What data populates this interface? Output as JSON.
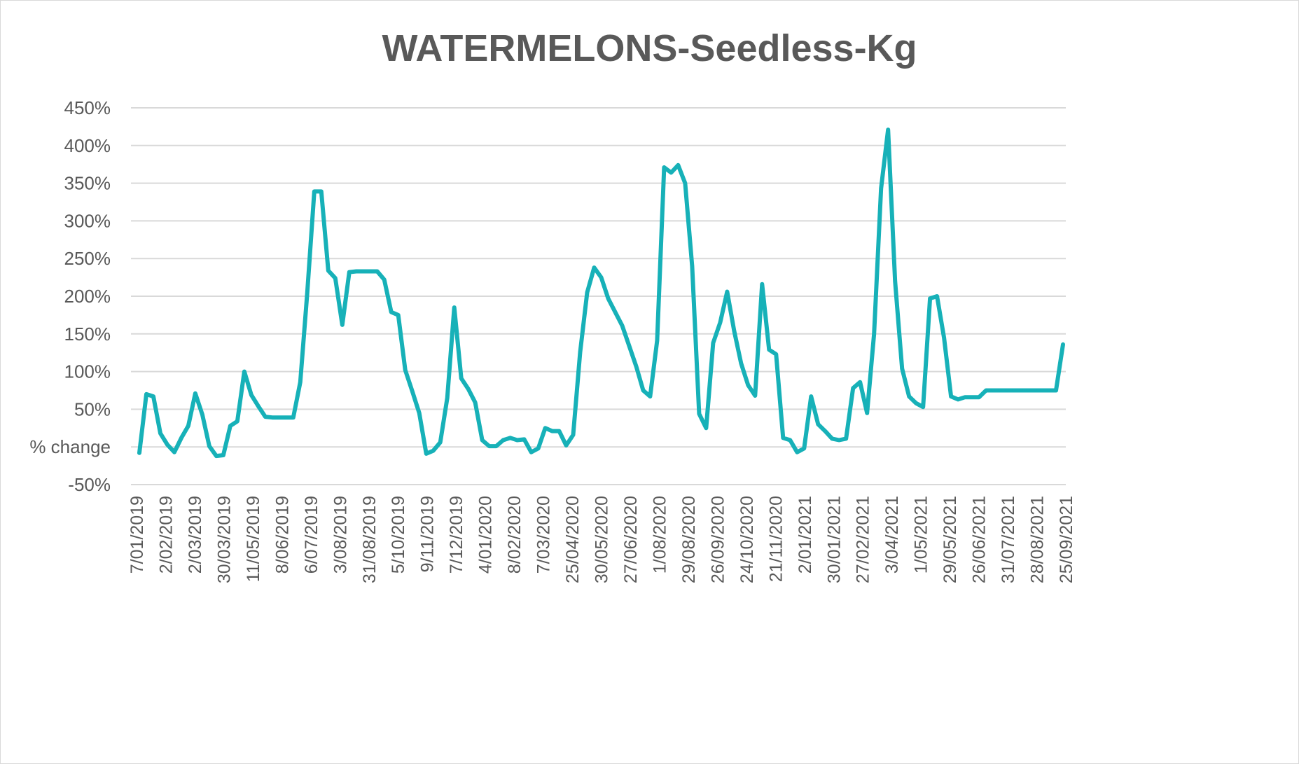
{
  "chart_data": {
    "type": "line",
    "title": "WATERMELONS-Seedless-Kg",
    "xlabel": "",
    "ylabel": "",
    "ylim": [
      -50,
      450
    ],
    "y_tick_values": [
      -50,
      0,
      50,
      100,
      150,
      200,
      250,
      300,
      350,
      400,
      450
    ],
    "y_tick_labels": [
      "-50%",
      "% change",
      "50%",
      "100%",
      "150%",
      "200%",
      "250%",
      "300%",
      "350%",
      "400%",
      "450%"
    ],
    "x_tick_labels": [
      "7/01/2019",
      "2/02/2019",
      "2/03/2019",
      "30/03/2019",
      "11/05/2019",
      "8/06/2019",
      "6/07/2019",
      "3/08/2019",
      "31/08/2019",
      "5/10/2019",
      "9/11/2019",
      "7/12/2019",
      "4/01/2020",
      "8/02/2020",
      "7/03/2020",
      "25/04/2020",
      "30/05/2020",
      "27/06/2020",
      "1/08/2020",
      "29/08/2020",
      "26/09/2020",
      "24/10/2020",
      "21/11/2020",
      "2/01/2021",
      "30/01/2021",
      "27/02/2021",
      "3/04/2021",
      "1/05/2021",
      "29/05/2021",
      "26/06/2021",
      "31/07/2021",
      "28/08/2021",
      "25/09/2021"
    ],
    "grid": true,
    "legend": "none",
    "line_color": "#17b1b8",
    "series": [
      {
        "values": [
          -8,
          70,
          67,
          18,
          3,
          -7,
          12,
          28,
          71,
          43,
          1,
          -12,
          -11,
          28,
          34,
          100,
          69,
          54,
          40,
          39,
          39,
          39,
          39,
          86,
          205,
          339,
          339,
          234,
          224,
          162,
          232,
          233,
          233,
          233,
          233,
          222,
          179,
          175,
          102,
          74,
          45,
          -9,
          -5,
          6,
          65,
          185,
          91,
          77,
          59,
          9,
          1,
          1,
          9,
          12,
          9,
          10,
          -7,
          -2,
          25,
          21,
          21,
          2,
          16,
          126,
          205,
          238,
          225,
          197,
          179,
          161,
          134,
          107,
          75,
          67,
          141,
          371,
          364,
          374,
          350,
          240,
          44,
          25,
          138,
          165,
          206,
          154,
          111,
          82,
          68,
          216,
          129,
          123,
          12,
          9,
          -7,
          -2,
          67,
          30,
          21,
          11,
          9,
          11,
          78,
          86,
          45,
          150,
          343,
          421,
          220,
          104,
          67,
          58,
          53,
          197,
          200,
          145,
          67,
          63,
          66,
          66,
          66,
          75,
          75,
          75,
          75,
          75,
          75,
          75,
          75,
          75,
          75,
          75,
          136
        ]
      }
    ]
  }
}
